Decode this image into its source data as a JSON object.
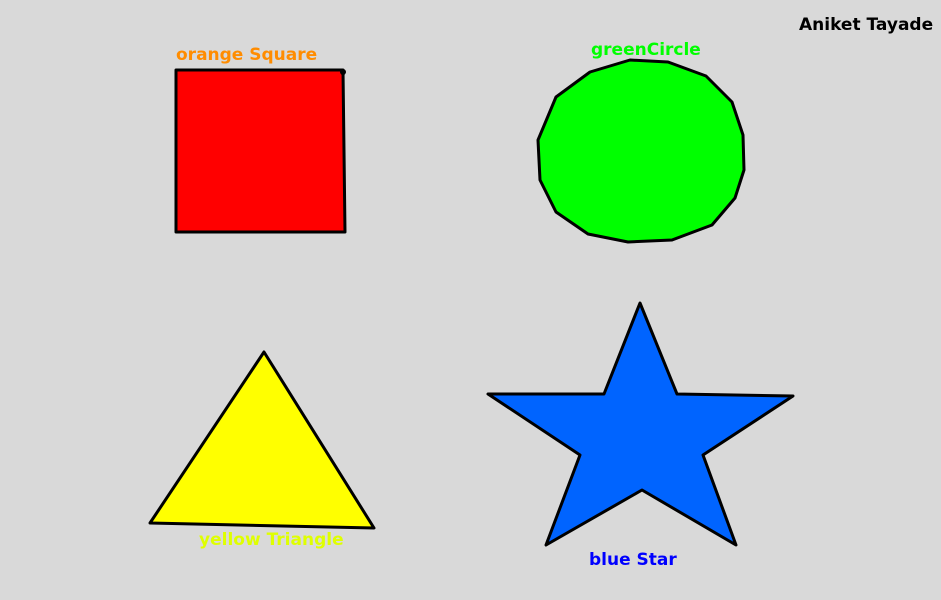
{
  "author": "Aniket Tayade",
  "shapes": {
    "square": {
      "label": "orange Square",
      "fill": "#ff0000",
      "label_color": "#ff8c00",
      "icon": "square-shape-icon"
    },
    "circle": {
      "label": "greenCircle",
      "fill": "#00ff00",
      "label_color": "#00ff00",
      "icon": "circle-shape-icon"
    },
    "triangle": {
      "label": "yellow Triangle",
      "fill": "#ffff00",
      "label_color": "#dfff00",
      "icon": "triangle-shape-icon"
    },
    "star": {
      "label": "blue Star",
      "fill": "#0064ff",
      "label_color": "#0000ff",
      "icon": "star-shape-icon"
    }
  },
  "colors": {
    "background": "#d9d9d9",
    "outline": "#000000"
  }
}
